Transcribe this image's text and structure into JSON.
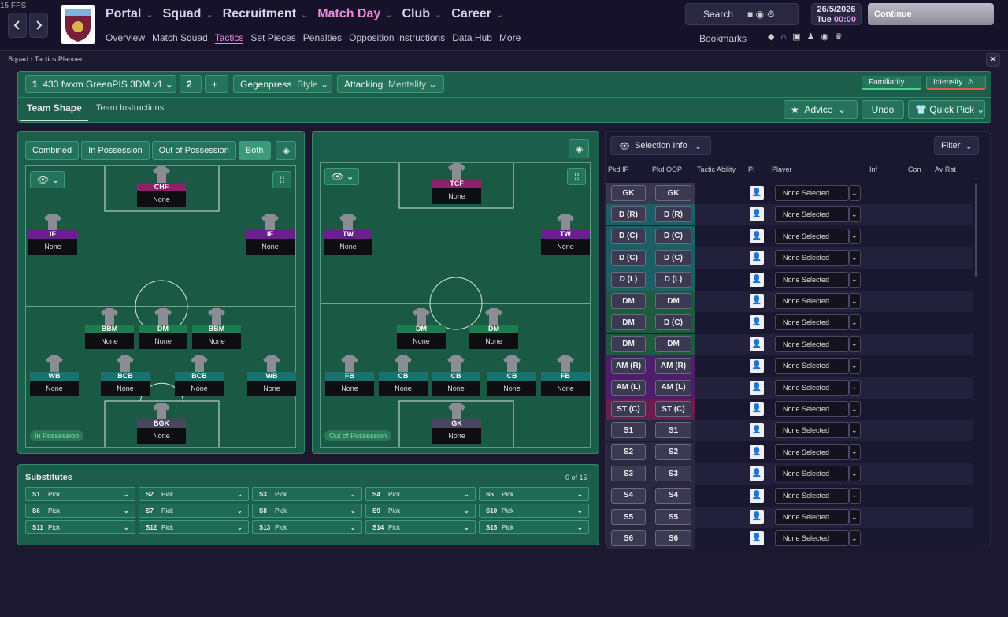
{
  "fps": "15 FPS",
  "nav": {
    "main": [
      "Portal",
      "Squad",
      "Recruitment",
      "Match Day",
      "Club",
      "Career"
    ],
    "sub": [
      "Overview",
      "Match Squad",
      "Tactics",
      "Set Pieces",
      "Penalties",
      "Opposition Instructions",
      "Data Hub",
      "More"
    ]
  },
  "header": {
    "search": "Search",
    "date": "26/5/2026",
    "day": "Tue",
    "time": "00:00",
    "continue": "Continue",
    "bookmarks": "Bookmarks"
  },
  "breadcrumb": [
    "Squad",
    "Tactics Planner"
  ],
  "tactic": {
    "slot": "1",
    "name": "433 fwxm GreenPIS 3DM v1",
    "slot2": "2",
    "add": "+",
    "style_value": "Gegenpress",
    "style_label": "Style",
    "mentality_value": "Attacking",
    "mentality_label": "Mentality",
    "familiarity": "Familiarity",
    "intensity": "Intensity"
  },
  "tabs": [
    "Team Shape",
    "Team Instructions"
  ],
  "actions": [
    "Advice",
    "Undo",
    "Quick Pick"
  ],
  "phases": [
    "Combined",
    "In Possession",
    "Out of Possession",
    "Both"
  ],
  "pitch_ip": {
    "label": "In Possession",
    "players": [
      {
        "role": "CHF",
        "name": "None",
        "color": "#8e1f6a"
      },
      {
        "role": "IF",
        "name": "None",
        "color": "#6b1f8e"
      },
      {
        "role": "IF",
        "name": "None",
        "color": "#6b1f8e"
      },
      {
        "role": "BBM",
        "name": "None",
        "color": "#1f7a4f"
      },
      {
        "role": "DM",
        "name": "None",
        "color": "#1f7a4f"
      },
      {
        "role": "BBM",
        "name": "None",
        "color": "#1f7a4f"
      },
      {
        "role": "WB",
        "name": "None",
        "color": "#1d7070"
      },
      {
        "role": "BCB",
        "name": "None",
        "color": "#1d7070"
      },
      {
        "role": "BCB",
        "name": "None",
        "color": "#1d7070"
      },
      {
        "role": "WB",
        "name": "None",
        "color": "#1d7070"
      },
      {
        "role": "BGK",
        "name": "None",
        "color": "#4a4660"
      }
    ]
  },
  "pitch_oop": {
    "label": "Out of Possession",
    "players": [
      {
        "role": "TCF",
        "name": "None",
        "color": "#8e1f6a"
      },
      {
        "role": "TW",
        "name": "None",
        "color": "#6b1f8e"
      },
      {
        "role": "TW",
        "name": "None",
        "color": "#6b1f8e"
      },
      {
        "role": "DM",
        "name": "None",
        "color": "#1f7a4f"
      },
      {
        "role": "DM",
        "name": "None",
        "color": "#1f7a4f"
      },
      {
        "role": "FB",
        "name": "None",
        "color": "#1d7070"
      },
      {
        "role": "CB",
        "name": "None",
        "color": "#1d7070"
      },
      {
        "role": "CB",
        "name": "None",
        "color": "#1d7070"
      },
      {
        "role": "CB",
        "name": "None",
        "color": "#1d7070"
      },
      {
        "role": "FB",
        "name": "None",
        "color": "#1d7070"
      },
      {
        "role": "GK",
        "name": "None",
        "color": "#4a4660"
      }
    ]
  },
  "substitutes": {
    "title": "Substitutes",
    "count": "0 of 15",
    "slots": [
      {
        "id": "S1",
        "pick": "Pick"
      },
      {
        "id": "S2",
        "pick": "Pick"
      },
      {
        "id": "S3",
        "pick": "Pick"
      },
      {
        "id": "S4",
        "pick": "Pick"
      },
      {
        "id": "S5",
        "pick": "Pick"
      },
      {
        "id": "S6",
        "pick": "Pick"
      },
      {
        "id": "S7",
        "pick": "Pick"
      },
      {
        "id": "S8",
        "pick": "Pick"
      },
      {
        "id": "S9",
        "pick": "Pick"
      },
      {
        "id": "S10",
        "pick": "Pick"
      },
      {
        "id": "S11",
        "pick": "Pick"
      },
      {
        "id": "S12",
        "pick": "Pick"
      },
      {
        "id": "S13",
        "pick": "Pick"
      },
      {
        "id": "S14",
        "pick": "Pick"
      },
      {
        "id": "S15",
        "pick": "Pick"
      }
    ]
  },
  "selection": {
    "button": "Selection Info",
    "filter": "Filter",
    "columns": [
      "Pkd IP",
      "Pkd OOP",
      "Tactic Ability",
      "PI",
      "Player",
      "Inf",
      "Con",
      "Av Rat"
    ],
    "rows": [
      {
        "ip": "GK",
        "oop": "GK",
        "player": "None Selected",
        "color": "#3a3650"
      },
      {
        "ip": "D (R)",
        "oop": "D (R)",
        "player": "None Selected",
        "color": "#1d5f66"
      },
      {
        "ip": "D (C)",
        "oop": "D (C)",
        "player": "None Selected",
        "color": "#1d5f66"
      },
      {
        "ip": "D (C)",
        "oop": "D (C)",
        "player": "None Selected",
        "color": "#1d5f66"
      },
      {
        "ip": "D (L)",
        "oop": "D (L)",
        "player": "None Selected",
        "color": "#1d5f66"
      },
      {
        "ip": "DM",
        "oop": "DM",
        "player": "None Selected",
        "color": "#1e5a3e"
      },
      {
        "ip": "DM",
        "oop": "D (C)",
        "player": "None Selected",
        "color": "#1e5a3e"
      },
      {
        "ip": "DM",
        "oop": "DM",
        "player": "None Selected",
        "color": "#1e5a3e"
      },
      {
        "ip": "AM (R)",
        "oop": "AM (R)",
        "player": "None Selected",
        "color": "#4e1d6b"
      },
      {
        "ip": "AM (L)",
        "oop": "AM (L)",
        "player": "None Selected",
        "color": "#4e1d6b"
      },
      {
        "ip": "ST (C)",
        "oop": "ST (C)",
        "player": "None Selected",
        "color": "#6b1d4e"
      },
      {
        "ip": "S1",
        "oop": "S1",
        "player": "None Selected",
        "color": "#2a2740"
      },
      {
        "ip": "S2",
        "oop": "S2",
        "player": "None Selected",
        "color": "#2a2740"
      },
      {
        "ip": "S3",
        "oop": "S3",
        "player": "None Selected",
        "color": "#2a2740"
      },
      {
        "ip": "S4",
        "oop": "S4",
        "player": "None Selected",
        "color": "#2a2740"
      },
      {
        "ip": "S5",
        "oop": "S5",
        "player": "None Selected",
        "color": "#2a2740"
      },
      {
        "ip": "S6",
        "oop": "S6",
        "player": "None Selected",
        "color": "#2a2740"
      }
    ]
  }
}
